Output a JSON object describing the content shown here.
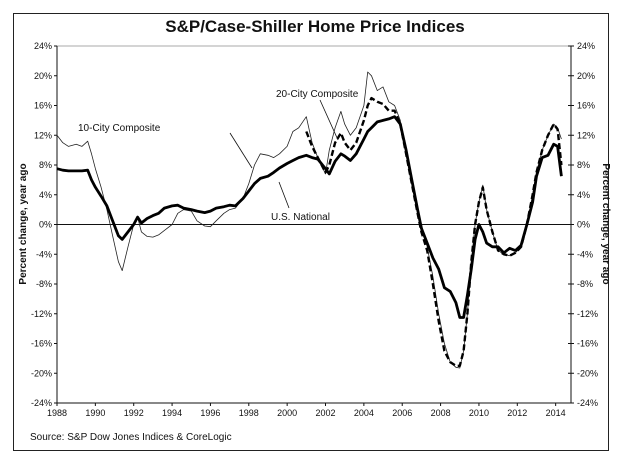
{
  "chart_data": {
    "type": "line",
    "title": "S&P/Case-Shiller Home Price Indices",
    "source": "Source: S&P Dow Jones Indices & CoreLogic",
    "ylabel_left": "Percent change, year ago",
    "ylabel_right": "Percent change, year ago",
    "xlabel": "",
    "xlim": [
      1988,
      2014.8
    ],
    "ylim": [
      -24,
      24
    ],
    "x_ticks": [
      "1988",
      "1990",
      "1992",
      "1994",
      "1996",
      "1998",
      "2000",
      "2002",
      "2004",
      "2006",
      "2008",
      "2010",
      "2012",
      "2014"
    ],
    "y_ticks": [
      "24%",
      "20%",
      "16%",
      "12%",
      "8%",
      "4%",
      "0%",
      "-4%",
      "-8%",
      "-12%",
      "-16%",
      "-20%",
      "-24%"
    ],
    "grid": false,
    "zero_line": true,
    "series": [
      {
        "name": "10-City Composite",
        "style": "thin",
        "x": [
          1988,
          1988.3,
          1988.6,
          1989,
          1989.3,
          1989.6,
          1989.8,
          1990,
          1990.3,
          1990.6,
          1990.9,
          1991.2,
          1991.4,
          1991.7,
          1992,
          1992.2,
          1992.4,
          1992.7,
          1993,
          1993.3,
          1993.6,
          1994,
          1994.3,
          1994.6,
          1995,
          1995.3,
          1995.7,
          1996,
          1996.3,
          1996.7,
          1997,
          1997.3,
          1997.7,
          1998,
          1998.3,
          1998.6,
          1999,
          1999.3,
          1999.6,
          2000,
          2000.3,
          2000.6,
          2001,
          2001.3,
          2001.6,
          2002,
          2002.2,
          2002.5,
          2002.8,
          2003,
          2003.3,
          2003.6,
          2004,
          2004.2,
          2004.4,
          2004.7,
          2005,
          2005.3,
          2005.6,
          2005.9,
          2006.2,
          2006.5,
          2006.8,
          2007,
          2007.3,
          2007.6,
          2007.9,
          2008.2,
          2008.5,
          2008.8,
          2009,
          2009.2,
          2009.4,
          2009.6,
          2009.8,
          2010,
          2010.2,
          2010.4,
          2010.7,
          2011,
          2011.3,
          2011.6,
          2011.9,
          2012.2,
          2012.5,
          2012.8,
          2013,
          2013.3,
          2013.6,
          2013.9,
          2014.1,
          2014.3
        ],
        "values": [
          12,
          11,
          10.5,
          10.8,
          10.5,
          11.2,
          9.5,
          7.5,
          5,
          2,
          -1.5,
          -5,
          -6.2,
          -3,
          0,
          1,
          -1,
          -1.6,
          -1.7,
          -1.4,
          -0.8,
          0,
          1.5,
          2,
          1.8,
          0.5,
          -0.2,
          -0.3,
          0.5,
          1.5,
          2,
          2.2,
          3.5,
          5.5,
          8,
          9.5,
          9.3,
          9,
          9.5,
          10.5,
          12.5,
          13,
          14.5,
          11,
          9,
          6.8,
          10,
          13,
          15.2,
          13.5,
          12,
          13,
          16,
          20.5,
          20,
          18,
          18.5,
          16.5,
          16,
          14,
          10,
          6,
          2,
          0,
          -3,
          -7,
          -12,
          -16,
          -18.5,
          -19.2,
          -19.3,
          -17,
          -12,
          -5,
          0,
          3,
          5.3,
          2,
          -1,
          -3.5,
          -4,
          -4.2,
          -3.8,
          -3,
          0,
          4,
          7,
          10,
          12,
          13.5,
          13,
          11.5
        ]
      },
      {
        "name": "20-City Composite",
        "style": "dashed",
        "x": [
          2001,
          2001.3,
          2001.6,
          2002,
          2002.2,
          2002.5,
          2002.8,
          2003,
          2003.3,
          2003.6,
          2004,
          2004.2,
          2004.4,
          2004.7,
          2005,
          2005.3,
          2005.6,
          2005.9,
          2006.2,
          2006.5,
          2006.8,
          2007,
          2007.3,
          2007.6,
          2007.9,
          2008.2,
          2008.5,
          2008.8,
          2009,
          2009.2,
          2009.4,
          2009.6,
          2009.8,
          2010,
          2010.2,
          2010.4,
          2010.7,
          2011,
          2011.3,
          2011.6,
          2011.9,
          2012.2,
          2012.5,
          2012.8,
          2013,
          2013.3,
          2013.6,
          2013.9,
          2014.1,
          2014.3
        ],
        "values": [
          12.5,
          10.5,
          9,
          7,
          8,
          11,
          12.3,
          11,
          10,
          11,
          14,
          16,
          17,
          16.5,
          16.2,
          15.3,
          15.3,
          13.5,
          9.5,
          5.5,
          1.5,
          -1,
          -3.5,
          -8,
          -13,
          -17,
          -18.5,
          -19,
          -19,
          -17,
          -12,
          -5,
          0,
          3,
          5,
          2,
          -1,
          -3.5,
          -4,
          -4.2,
          -3.8,
          -3,
          0,
          4,
          7,
          10,
          12,
          13.5,
          12.8,
          8
        ]
      },
      {
        "name": "U.S. National",
        "style": "thick",
        "x": [
          1988,
          1988.3,
          1988.6,
          1989,
          1989.3,
          1989.6,
          1989.8,
          1990,
          1990.3,
          1990.6,
          1990.9,
          1991.2,
          1991.4,
          1991.7,
          1992,
          1992.2,
          1992.4,
          1992.7,
          1993,
          1993.3,
          1993.6,
          1994,
          1994.3,
          1994.6,
          1995,
          1995.3,
          1995.7,
          1996,
          1996.3,
          1996.7,
          1997,
          1997.3,
          1997.7,
          1998,
          1998.3,
          1998.6,
          1999,
          1999.3,
          1999.6,
          2000,
          2000.3,
          2000.6,
          2001,
          2001.3,
          2001.6,
          2002,
          2002.2,
          2002.5,
          2002.8,
          2003,
          2003.3,
          2003.6,
          2004,
          2004.2,
          2004.4,
          2004.7,
          2005,
          2005.3,
          2005.6,
          2005.9,
          2006.2,
          2006.5,
          2006.8,
          2007,
          2007.3,
          2007.6,
          2007.9,
          2008.2,
          2008.5,
          2008.8,
          2009,
          2009.2,
          2009.4,
          2009.6,
          2009.8,
          2010,
          2010.2,
          2010.4,
          2010.7,
          2011,
          2011.3,
          2011.6,
          2011.9,
          2012.2,
          2012.5,
          2012.8,
          2013,
          2013.3,
          2013.6,
          2013.9,
          2014.1,
          2014.3
        ],
        "values": [
          7.5,
          7.3,
          7.2,
          7.2,
          7.2,
          7.3,
          6,
          5,
          3.8,
          2.5,
          0.5,
          -1.5,
          -2,
          -1,
          0,
          1,
          0.2,
          0.8,
          1.2,
          1.5,
          2.2,
          2.5,
          2.6,
          2.2,
          2,
          1.8,
          1.6,
          1.8,
          2.2,
          2.4,
          2.6,
          2.5,
          3.5,
          4.5,
          5.5,
          6.2,
          6.5,
          7,
          7.6,
          8.2,
          8.6,
          9,
          9.3,
          9,
          8.8,
          7.5,
          6.8,
          8.5,
          9.5,
          9.2,
          8.6,
          9.5,
          11.5,
          12.5,
          13,
          13.8,
          14,
          14.2,
          14.5,
          13.5,
          10,
          6,
          2,
          -0.5,
          -2.5,
          -4.5,
          -6,
          -8.5,
          -9,
          -10.5,
          -12.5,
          -12.5,
          -9.5,
          -6,
          -2,
          0,
          -1,
          -2.5,
          -3,
          -3,
          -3.8,
          -3.2,
          -3.5,
          -2.8,
          0,
          3,
          6.5,
          9,
          9.3,
          10.8,
          10.5,
          6.5
        ]
      }
    ],
    "annotations": [
      {
        "text": "10-City Composite"
      },
      {
        "text": "20-City Composite"
      },
      {
        "text": "U.S. National"
      }
    ]
  }
}
